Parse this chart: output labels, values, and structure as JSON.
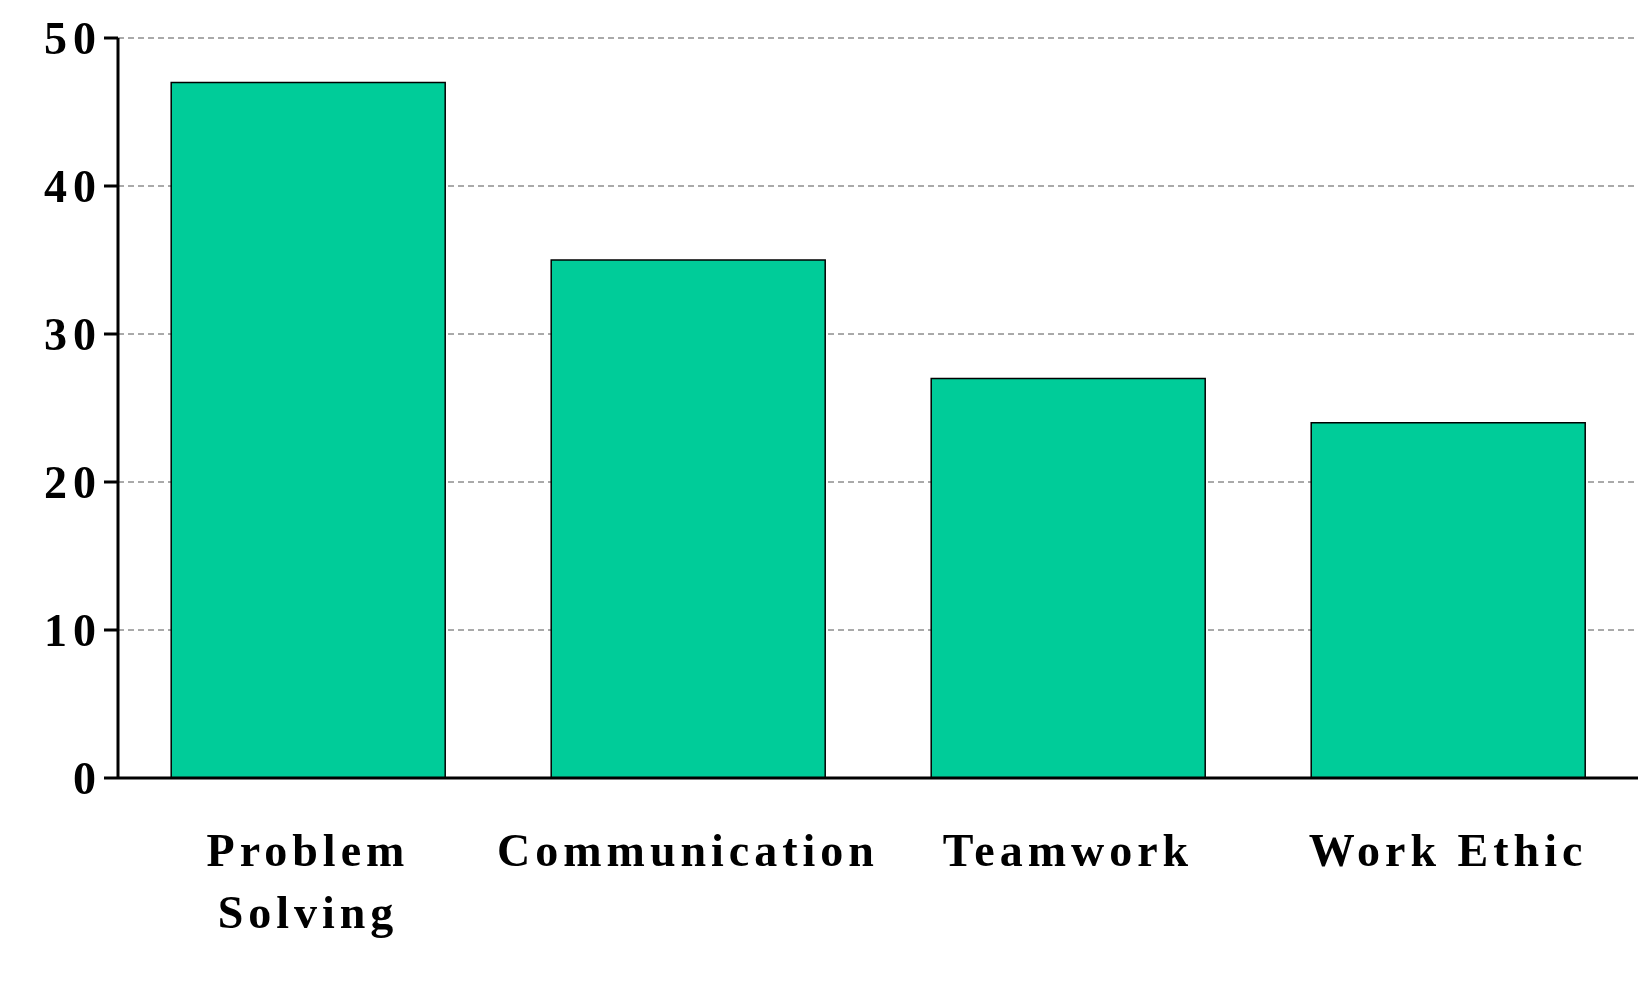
{
  "chart_data": {
    "type": "bar",
    "categories": [
      "Problem Solving",
      "Communication",
      "Teamwork",
      "Work Ethic"
    ],
    "values": [
      47,
      35,
      27,
      24
    ],
    "color": "#00cc99",
    "ylim": [
      0,
      50
    ],
    "yticks": [
      0,
      10,
      20,
      30,
      40,
      50
    ],
    "grid": "y"
  }
}
